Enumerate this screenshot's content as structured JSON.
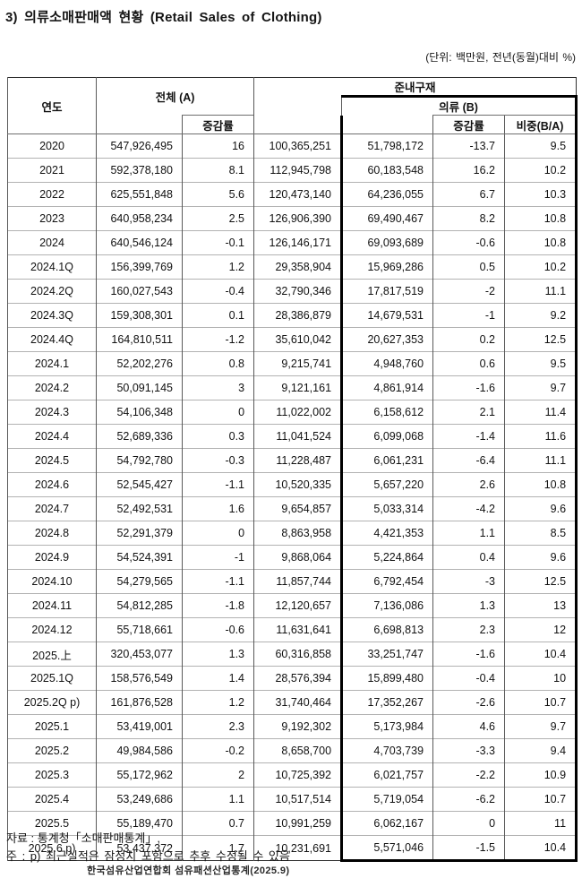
{
  "title": "3) 의류소매판매액 현황 (Retail Sales of Clothing)",
  "unit_note": "(단위: 백만원, 전년(동월)대비 %)",
  "table": {
    "headers": {
      "year": "연도",
      "total": "전체 (A)",
      "total_growth": "증감률",
      "semi_durable": "준내구재",
      "clothing": "의류 (B)",
      "clothing_growth": "증감률",
      "share": "비중(B/A)"
    },
    "rows": [
      [
        "2020",
        "547,926,495",
        "16",
        "100,365,251",
        "51,798,172",
        "-13.7",
        "9.5"
      ],
      [
        "2021",
        "592,378,180",
        "8.1",
        "112,945,798",
        "60,183,548",
        "16.2",
        "10.2"
      ],
      [
        "2022",
        "625,551,848",
        "5.6",
        "120,473,140",
        "64,236,055",
        "6.7",
        "10.3"
      ],
      [
        "2023",
        "640,958,234",
        "2.5",
        "126,906,390",
        "69,490,467",
        "8.2",
        "10.8"
      ],
      [
        "2024",
        "640,546,124",
        "-0.1",
        "126,146,171",
        "69,093,689",
        "-0.6",
        "10.8"
      ],
      [
        "2024.1Q",
        "156,399,769",
        "1.2",
        "29,358,904",
        "15,969,286",
        "0.5",
        "10.2"
      ],
      [
        "2024.2Q",
        "160,027,543",
        "-0.4",
        "32,790,346",
        "17,817,519",
        "-2",
        "11.1"
      ],
      [
        "2024.3Q",
        "159,308,301",
        "0.1",
        "28,386,879",
        "14,679,531",
        "-1",
        "9.2"
      ],
      [
        "2024.4Q",
        "164,810,511",
        "-1.2",
        "35,610,042",
        "20,627,353",
        "0.2",
        "12.5"
      ],
      [
        "2024.1",
        "52,202,276",
        "0.8",
        "9,215,741",
        "4,948,760",
        "0.6",
        "9.5"
      ],
      [
        "2024.2",
        "50,091,145",
        "3",
        "9,121,161",
        "4,861,914",
        "-1.6",
        "9.7"
      ],
      [
        "2024.3",
        "54,106,348",
        "0",
        "11,022,002",
        "6,158,612",
        "2.1",
        "11.4"
      ],
      [
        "2024.4",
        "52,689,336",
        "0.3",
        "11,041,524",
        "6,099,068",
        "-1.4",
        "11.6"
      ],
      [
        "2024.5",
        "54,792,780",
        "-0.3",
        "11,228,487",
        "6,061,231",
        "-6.4",
        "11.1"
      ],
      [
        "2024.6",
        "52,545,427",
        "-1.1",
        "10,520,335",
        "5,657,220",
        "2.6",
        "10.8"
      ],
      [
        "2024.7",
        "52,492,531",
        "1.6",
        "9,654,857",
        "5,033,314",
        "-4.2",
        "9.6"
      ],
      [
        "2024.8",
        "52,291,379",
        "0",
        "8,863,958",
        "4,421,353",
        "1.1",
        "8.5"
      ],
      [
        "2024.9",
        "54,524,391",
        "-1",
        "9,868,064",
        "5,224,864",
        "0.4",
        "9.6"
      ],
      [
        "2024.10",
        "54,279,565",
        "-1.1",
        "11,857,744",
        "6,792,454",
        "-3",
        "12.5"
      ],
      [
        "2024.11",
        "54,812,285",
        "-1.8",
        "12,120,657",
        "7,136,086",
        "1.3",
        "13"
      ],
      [
        "2024.12",
        "55,718,661",
        "-0.6",
        "11,631,641",
        "6,698,813",
        "2.3",
        "12"
      ],
      [
        "2025.上",
        "320,453,077",
        "1.3",
        "60,316,858",
        "33,251,747",
        "-1.6",
        "10.4"
      ],
      [
        "2025.1Q",
        "158,576,549",
        "1.4",
        "28,576,394",
        "15,899,480",
        "-0.4",
        "10"
      ],
      [
        "2025.2Q p)",
        "161,876,528",
        "1.2",
        "31,740,464",
        "17,352,267",
        "-2.6",
        "10.7"
      ],
      [
        "2025.1",
        "53,419,001",
        "2.3",
        "9,192,302",
        "5,173,984",
        "4.6",
        "9.7"
      ],
      [
        "2025.2",
        "49,984,586",
        "-0.2",
        "8,658,700",
        "4,703,739",
        "-3.3",
        "9.4"
      ],
      [
        "2025.3",
        "55,172,962",
        "2",
        "10,725,392",
        "6,021,757",
        "-2.2",
        "10.9"
      ],
      [
        "2025.4",
        "53,249,686",
        "1.1",
        "10,517,514",
        "5,719,054",
        "-6.2",
        "10.7"
      ],
      [
        "2025.5",
        "55,189,470",
        "0.7",
        "10,991,259",
        "6,062,167",
        "0",
        "11"
      ],
      [
        "2025.6 p)",
        "53,437,372",
        "1.7",
        "10,231,691",
        "5,571,046",
        "-1.5",
        "10.4"
      ]
    ]
  },
  "footnotes": {
    "source": "자료 : 통계청「소매판매통계」,",
    "note": "주 : p) 최근실적은 잠정치 포함으로 추후 수정될 수 있음",
    "credit": "한국섬유산업연합회 섬유패션산업통계(2025.9)"
  }
}
